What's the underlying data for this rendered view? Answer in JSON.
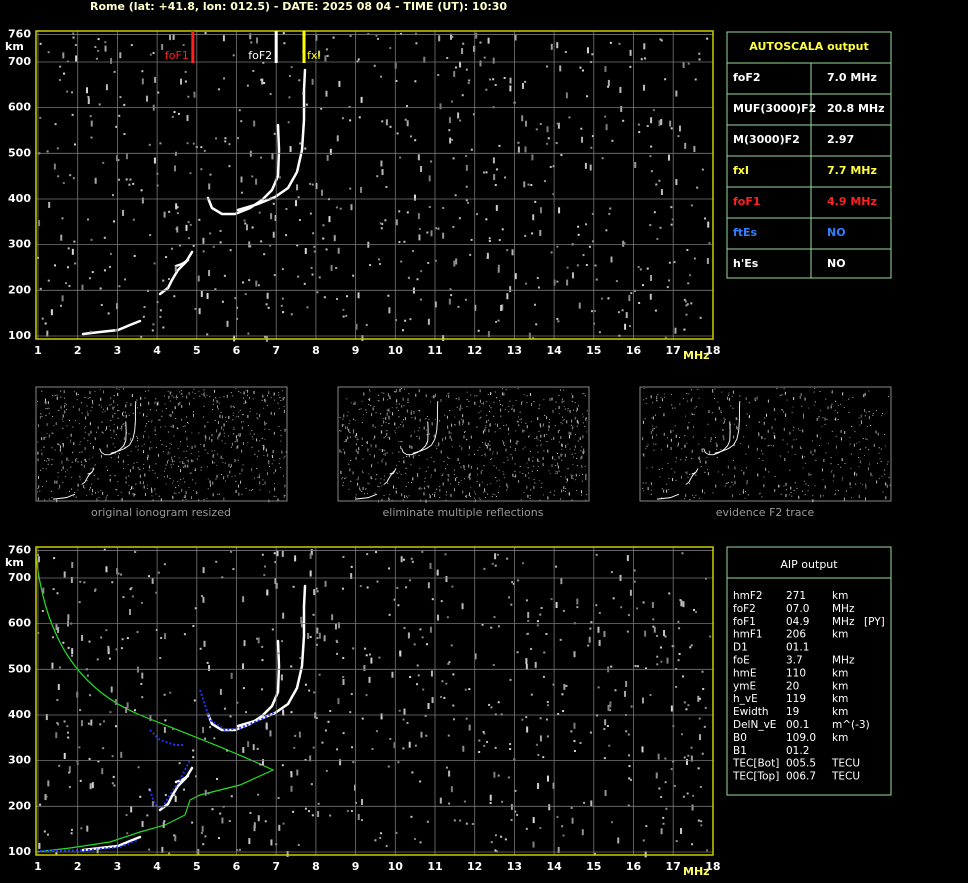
{
  "header": "Rome (lat: +41.8, lon: 012.5) - DATE: 2025 08 04 - TIME (UT): 10:30",
  "ionogram": {
    "x_unit": "MHz",
    "y_unit": "km",
    "xticks": [
      1,
      2,
      3,
      4,
      5,
      6,
      7,
      8,
      9,
      10,
      11,
      12,
      13,
      14,
      15,
      16,
      17,
      18
    ],
    "yticks": [
      100,
      200,
      300,
      400,
      500,
      600,
      700,
      760
    ],
    "markers": [
      {
        "label": "foF1",
        "value": 4.9,
        "color": "#ff2020"
      },
      {
        "label": "foF2",
        "value": 7.0,
        "color": "#ffffff"
      },
      {
        "label": "fxI",
        "value": 7.7,
        "color": "#ffff00"
      }
    ]
  },
  "autoscala": {
    "title": "AUTOSCALA output",
    "rows": [
      {
        "name": "foF2",
        "value": "7.0 MHz",
        "color": "#ffffff"
      },
      {
        "name": "MUF(3000)F2",
        "value": "20.8 MHz",
        "color": "#ffffff"
      },
      {
        "name": "M(3000)F2",
        "value": "2.97",
        "color": "#ffffff"
      },
      {
        "name": "fxI",
        "value": "7.7 MHz",
        "color": "#ffff40"
      },
      {
        "name": "foF1",
        "value": "4.9 MHz",
        "color": "#ff2020"
      },
      {
        "name": "ftEs",
        "value": "NO",
        "color": "#3080ff"
      },
      {
        "name": "h'Es",
        "value": "NO",
        "color": "#ffffff"
      }
    ]
  },
  "thumbnails": [
    "original ionogram resized",
    "eliminate multiple reflections",
    "evidence F2 trace"
  ],
  "aip": {
    "title": "AIP output",
    "rows": [
      [
        "hmF2",
        "271",
        "km"
      ],
      [
        "foF2",
        "07.0",
        "MHz"
      ],
      [
        "foF1",
        "04.9",
        "MHz",
        "[PY]"
      ],
      [
        "hmF1",
        "206",
        "km"
      ],
      [
        "D1",
        "01.1"
      ],
      [
        "foE",
        "3.7",
        "MHz"
      ],
      [
        "hmE",
        "110",
        "km"
      ],
      [
        "ymE",
        "20",
        "km"
      ],
      [
        "h_vE",
        "119",
        "km"
      ],
      [
        "Ewidth",
        "19",
        "km"
      ],
      [
        "DelN_vE",
        "00.1",
        "m^(-3)"
      ],
      [
        "B0",
        "109.0",
        "km"
      ],
      [
        "B1",
        "01.2"
      ],
      [
        "TEC[Bot]",
        "005.5",
        "TECU"
      ],
      [
        "TEC[Top]",
        "006.7",
        "TECU"
      ]
    ]
  }
}
